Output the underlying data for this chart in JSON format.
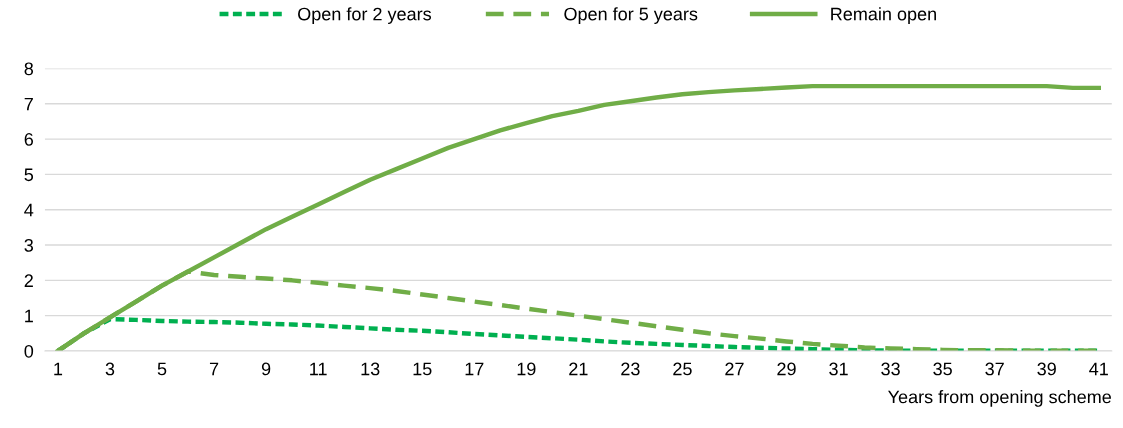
{
  "chart_data": {
    "type": "line",
    "xlabel": "Years from opening scheme",
    "x": [
      1,
      2,
      3,
      4,
      5,
      6,
      7,
      8,
      9,
      10,
      11,
      12,
      13,
      14,
      15,
      16,
      17,
      18,
      19,
      20,
      21,
      22,
      23,
      24,
      25,
      26,
      27,
      28,
      29,
      30,
      31,
      32,
      33,
      34,
      35,
      36,
      37,
      38,
      39,
      40,
      41
    ],
    "series": [
      {
        "name": "Open for 2 years",
        "color": "#00b050",
        "line_style": "dotted",
        "values": [
          0,
          0.5,
          0.9,
          0.88,
          0.85,
          0.83,
          0.82,
          0.8,
          0.77,
          0.75,
          0.72,
          0.68,
          0.64,
          0.6,
          0.57,
          0.53,
          0.48,
          0.44,
          0.4,
          0.36,
          0.32,
          0.27,
          0.23,
          0.2,
          0.17,
          0.14,
          0.11,
          0.09,
          0.07,
          0.05,
          0.03,
          0.02,
          0.01,
          0.01,
          0.01,
          0.01,
          0.01,
          0.01,
          0.01,
          0.01,
          0.01
        ]
      },
      {
        "name": "Open for 5 years",
        "color": "#70ad47",
        "line_style": "dashed",
        "values": [
          0,
          0.5,
          0.95,
          1.4,
          1.85,
          2.25,
          2.15,
          2.1,
          2.05,
          2.0,
          1.93,
          1.85,
          1.78,
          1.7,
          1.6,
          1.5,
          1.4,
          1.3,
          1.2,
          1.1,
          1.0,
          0.9,
          0.8,
          0.7,
          0.6,
          0.5,
          0.42,
          0.35,
          0.27,
          0.2,
          0.15,
          0.1,
          0.07,
          0.05,
          0.03,
          0.02,
          0.02,
          0.01,
          0.01,
          0.01,
          0.01
        ]
      },
      {
        "name": "Remain open",
        "color": "#70ad47",
        "line_style": "solid",
        "values": [
          0,
          0.5,
          0.95,
          1.4,
          1.85,
          2.25,
          2.65,
          3.05,
          3.45,
          3.8,
          4.15,
          4.5,
          4.85,
          5.15,
          5.45,
          5.75,
          6.0,
          6.25,
          6.45,
          6.65,
          6.8,
          6.97,
          7.07,
          7.18,
          7.27,
          7.33,
          7.38,
          7.42,
          7.46,
          7.5,
          7.5,
          7.5,
          7.5,
          7.5,
          7.5,
          7.5,
          7.5,
          7.5,
          7.5,
          7.45,
          7.45
        ]
      }
    ],
    "xlim": [
      0.5,
      41.5
    ],
    "xticks": [
      1,
      3,
      5,
      7,
      9,
      11,
      13,
      15,
      17,
      19,
      21,
      23,
      25,
      27,
      29,
      31,
      33,
      35,
      37,
      39,
      41
    ],
    "ylim": [
      0,
      8
    ],
    "yticks": [
      0,
      1,
      2,
      3,
      4,
      5,
      6,
      7,
      8
    ],
    "grid": "y",
    "legend": "top",
    "marker": "none"
  }
}
